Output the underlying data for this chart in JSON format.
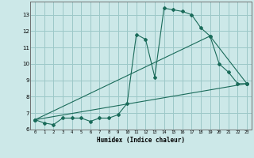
{
  "xlabel": "Humidex (Indice chaleur)",
  "bg_color": "#cce8e8",
  "grid_color": "#9cc8c8",
  "line_color": "#1a6b5a",
  "xlim": [
    -0.5,
    23.5
  ],
  "ylim": [
    6,
    13.8
  ],
  "yticks": [
    6,
    7,
    8,
    9,
    10,
    11,
    12,
    13
  ],
  "xticks": [
    0,
    1,
    2,
    3,
    4,
    5,
    6,
    7,
    8,
    9,
    10,
    11,
    12,
    13,
    14,
    15,
    16,
    17,
    18,
    19,
    20,
    21,
    22,
    23
  ],
  "series1_x": [
    0,
    1,
    2,
    3,
    4,
    5,
    6,
    7,
    8,
    9,
    10,
    11,
    12,
    13,
    14,
    15,
    16,
    17,
    18,
    19,
    20,
    21,
    22,
    23
  ],
  "series1_y": [
    6.6,
    6.4,
    6.3,
    6.7,
    6.7,
    6.7,
    6.5,
    6.7,
    6.7,
    6.9,
    7.6,
    11.8,
    11.5,
    9.2,
    13.4,
    13.3,
    13.2,
    13.0,
    12.2,
    11.7,
    10.0,
    9.5,
    8.8,
    8.8
  ],
  "series2_x": [
    0,
    23
  ],
  "series2_y": [
    6.6,
    8.8
  ],
  "series3_x": [
    0,
    19,
    23
  ],
  "series3_y": [
    6.6,
    11.7,
    8.8
  ]
}
